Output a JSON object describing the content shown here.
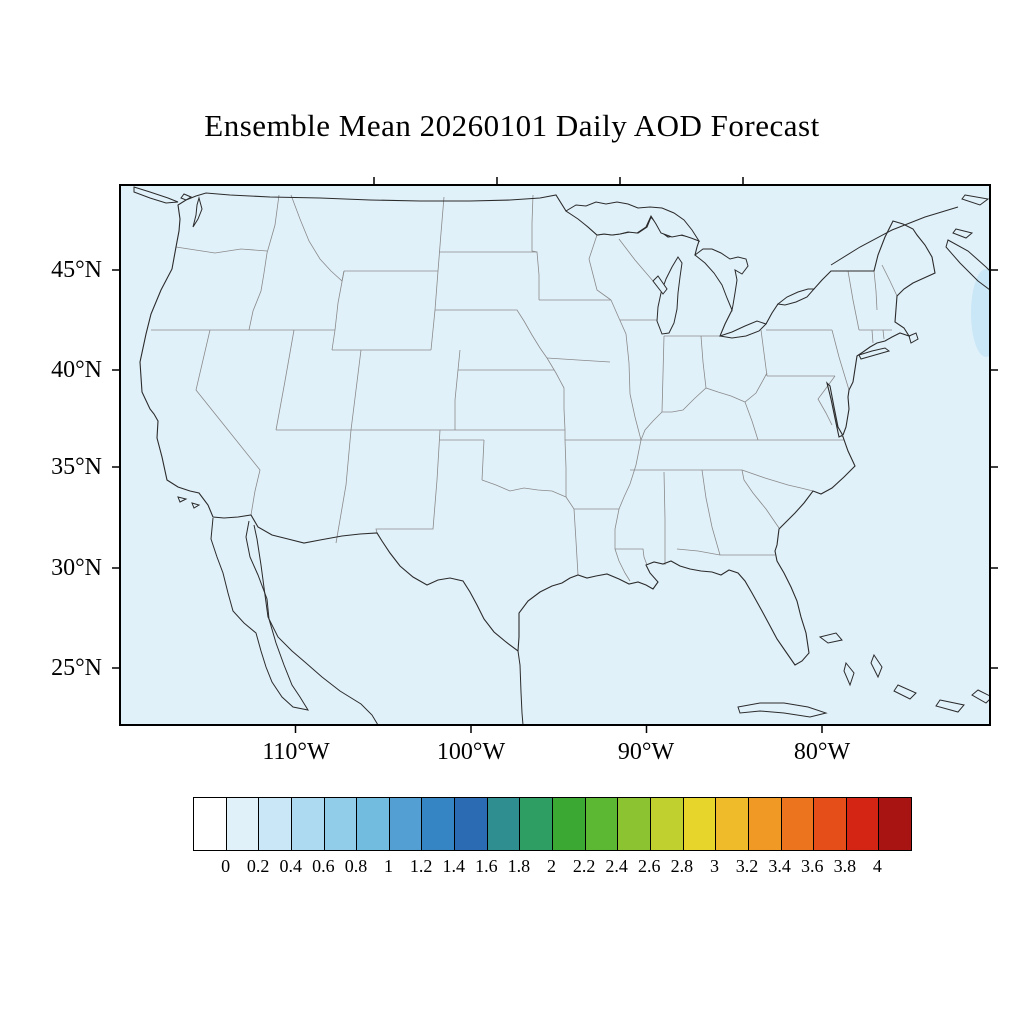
{
  "title": "Ensemble Mean 20260101 Daily AOD Forecast",
  "axes": {
    "lat_labels": [
      "45°N",
      "40°N",
      "35°N",
      "30°N",
      "25°N"
    ],
    "lon_labels": [
      "110°W",
      "100°W",
      "90°W",
      "80°W"
    ]
  },
  "map": {
    "background_color": "#e1f1fa",
    "patch_color": "#c9e7f6",
    "coast_color": "#2b2b2b",
    "state_line_color": "#8a8a8a",
    "frame_color": "#000000"
  },
  "colorbar": {
    "labels": [
      "0",
      "0.2",
      "0.4",
      "0.6",
      "0.8",
      "1",
      "1.2",
      "1.4",
      "1.6",
      "1.8",
      "2",
      "2.2",
      "2.4",
      "2.6",
      "2.8",
      "3",
      "3.2",
      "3.4",
      "3.6",
      "3.8",
      "4"
    ],
    "colors": [
      "#ffffff",
      "#e1f1fa",
      "#c9e7f6",
      "#aedaf1",
      "#91cce9",
      "#72bce0",
      "#539fd4",
      "#3585c5",
      "#2a6bb4",
      "#2f8e8f",
      "#2f9e62",
      "#3aa832",
      "#5cb832",
      "#8cc431",
      "#c0d02f",
      "#e8d52c",
      "#f0bb2a",
      "#f09a25",
      "#ec741e",
      "#e54e18",
      "#d32414",
      "#a81412"
    ]
  },
  "chart_data": {
    "type": "heatmap",
    "title": "Ensemble Mean 20260101 Daily AOD Forecast",
    "variable": "Aerosol Optical Depth (AOD), ensemble mean daily forecast for 20260101",
    "region": "Contiguous United States with surrounding areas (southern Canada, northern Mexico, western Atlantic)",
    "xlabel": "Longitude",
    "ylabel": "Latitude",
    "x_ticks": [
      "110°W",
      "100°W",
      "90°W",
      "80°W"
    ],
    "y_ticks": [
      "45°N",
      "40°N",
      "35°N",
      "30°N",
      "25°N"
    ],
    "colorbar_levels": [
      0,
      0.2,
      0.4,
      0.6,
      0.8,
      1,
      1.2,
      1.4,
      1.6,
      1.8,
      2,
      2.2,
      2.4,
      2.6,
      2.8,
      3,
      3.2,
      3.4,
      3.6,
      3.8,
      4
    ],
    "field_summary": "AOD is in the lowest bin (0 to 0.2, palest blue) over essentially the entire map domain; a small patch of 0.2 to 0.4 appears over the western Atlantic at the right map edge near 40-43N.",
    "legend_position": "horizontal labelbar below map",
    "grid": false
  }
}
